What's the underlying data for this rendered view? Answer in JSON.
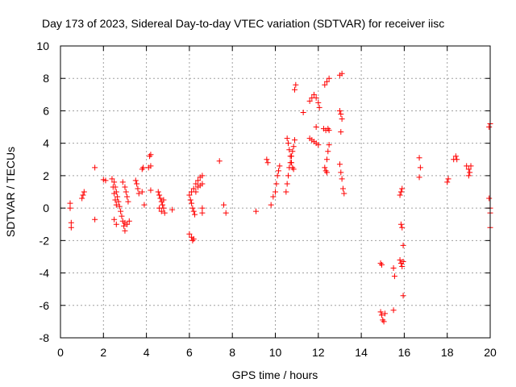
{
  "chart_data": {
    "type": "scatter",
    "title": "Day 173 of 2023, Sidereal Day-to-day VTEC variation (SDTVAR) for receiver iisc",
    "xlabel": "GPS time / hours",
    "ylabel": "SDTVAR / TECUs",
    "xlim": [
      0,
      20
    ],
    "ylim": [
      -8,
      10
    ],
    "xticks": [
      "0",
      "2",
      "4",
      "6",
      "8",
      "10",
      "12",
      "14",
      "16",
      "18",
      "20"
    ],
    "yticks": [
      "-8",
      "-6",
      "-4",
      "-2",
      "0",
      "2",
      "4",
      "6",
      "8",
      "10"
    ],
    "grid": true,
    "marker": "+",
    "series": [
      {
        "name": "SDTVAR",
        "color": "#ff0000",
        "points": [
          [
            0.45,
            0.3
          ],
          [
            0.45,
            0.0
          ],
          [
            0.5,
            -0.9
          ],
          [
            0.5,
            -1.2
          ],
          [
            1.0,
            0.6
          ],
          [
            1.05,
            0.8
          ],
          [
            1.1,
            1.0
          ],
          [
            1.6,
            2.5
          ],
          [
            1.6,
            -0.7
          ],
          [
            2.0,
            1.75
          ],
          [
            2.1,
            1.7
          ],
          [
            2.4,
            1.8
          ],
          [
            2.5,
            1.6
          ],
          [
            2.55,
            1.3
          ],
          [
            2.6,
            1.0
          ],
          [
            2.65,
            0.7
          ],
          [
            2.7,
            0.4
          ],
          [
            2.75,
            0.1
          ],
          [
            2.8,
            -0.2
          ],
          [
            2.85,
            -0.5
          ],
          [
            2.9,
            -0.8
          ],
          [
            2.95,
            -1.1
          ],
          [
            3.0,
            -1.4
          ],
          [
            2.45,
            1.3
          ],
          [
            2.5,
            0.9
          ],
          [
            2.55,
            0.5
          ],
          [
            2.6,
            0.2
          ],
          [
            2.5,
            -0.7
          ],
          [
            2.6,
            -1.0
          ],
          [
            2.9,
            1.6
          ],
          [
            3.0,
            1.3
          ],
          [
            3.05,
            1.0
          ],
          [
            3.1,
            0.7
          ],
          [
            3.15,
            0.4
          ],
          [
            3.0,
            -0.9
          ],
          [
            3.1,
            -1.0
          ],
          [
            3.2,
            -0.8
          ],
          [
            3.5,
            1.7
          ],
          [
            3.55,
            1.5
          ],
          [
            3.6,
            1.2
          ],
          [
            3.65,
            0.9
          ],
          [
            3.8,
            2.4
          ],
          [
            3.85,
            2.5
          ],
          [
            3.8,
            1.0
          ],
          [
            3.9,
            0.2
          ],
          [
            4.1,
            2.5
          ],
          [
            4.2,
            2.6
          ],
          [
            4.15,
            3.2
          ],
          [
            4.2,
            3.3
          ],
          [
            4.2,
            1.1
          ],
          [
            4.55,
            1.0
          ],
          [
            4.6,
            0.8
          ],
          [
            4.65,
            0.6
          ],
          [
            4.7,
            0.4
          ],
          [
            4.75,
            0.2
          ],
          [
            4.8,
            0.0
          ],
          [
            4.85,
            -0.3
          ],
          [
            4.6,
            0.0
          ],
          [
            4.7,
            -0.2
          ],
          [
            4.8,
            0.5
          ],
          [
            5.2,
            -0.1
          ],
          [
            6.0,
            0.8
          ],
          [
            6.05,
            0.5
          ],
          [
            6.1,
            0.3
          ],
          [
            6.15,
            0.0
          ],
          [
            6.2,
            -0.2
          ],
          [
            6.25,
            -0.4
          ],
          [
            6.0,
            -1.6
          ],
          [
            6.1,
            -1.8
          ],
          [
            6.15,
            -2.0
          ],
          [
            6.2,
            -1.9
          ],
          [
            6.1,
            1.0
          ],
          [
            6.2,
            1.2
          ],
          [
            6.3,
            1.5
          ],
          [
            6.4,
            1.7
          ],
          [
            6.5,
            1.9
          ],
          [
            6.6,
            2.0
          ],
          [
            6.3,
            1.0
          ],
          [
            6.4,
            1.3
          ],
          [
            6.5,
            1.4
          ],
          [
            6.6,
            1.5
          ],
          [
            6.6,
            0.0
          ],
          [
            6.6,
            -0.3
          ],
          [
            7.4,
            2.9
          ],
          [
            7.6,
            0.2
          ],
          [
            7.7,
            -0.3
          ],
          [
            9.1,
            -0.2
          ],
          [
            9.6,
            3.0
          ],
          [
            9.65,
            2.8
          ],
          [
            9.8,
            0.2
          ],
          [
            9.9,
            0.7
          ],
          [
            10.0,
            1.0
          ],
          [
            10.05,
            1.5
          ],
          [
            10.1,
            2.0
          ],
          [
            10.15,
            2.3
          ],
          [
            10.2,
            2.6
          ],
          [
            10.5,
            1.0
          ],
          [
            10.55,
            1.5
          ],
          [
            10.6,
            2.0
          ],
          [
            10.65,
            2.5
          ],
          [
            10.7,
            2.8
          ],
          [
            10.75,
            3.2
          ],
          [
            10.8,
            3.5
          ],
          [
            10.85,
            3.8
          ],
          [
            10.9,
            4.2
          ],
          [
            10.55,
            4.3
          ],
          [
            10.6,
            4.0
          ],
          [
            10.65,
            3.6
          ],
          [
            10.7,
            3.2
          ],
          [
            10.75,
            2.8
          ],
          [
            10.8,
            2.5
          ],
          [
            10.85,
            2.4
          ],
          [
            10.9,
            7.3
          ],
          [
            10.95,
            7.6
          ],
          [
            11.3,
            5.9
          ],
          [
            11.6,
            6.6
          ],
          [
            11.7,
            6.8
          ],
          [
            11.8,
            7.0
          ],
          [
            11.9,
            6.8
          ],
          [
            12.0,
            6.5
          ],
          [
            12.05,
            6.2
          ],
          [
            11.6,
            4.3
          ],
          [
            11.7,
            4.2
          ],
          [
            11.8,
            4.1
          ],
          [
            11.9,
            4.0
          ],
          [
            12.0,
            3.9
          ],
          [
            11.9,
            5.0
          ],
          [
            12.3,
            7.6
          ],
          [
            12.4,
            7.8
          ],
          [
            12.5,
            8.0
          ],
          [
            12.25,
            4.9
          ],
          [
            12.35,
            4.8
          ],
          [
            12.45,
            4.9
          ],
          [
            12.5,
            4.8
          ],
          [
            12.3,
            2.5
          ],
          [
            12.35,
            2.3
          ],
          [
            12.4,
            2.2
          ],
          [
            12.4,
            3.0
          ],
          [
            12.45,
            3.5
          ],
          [
            12.5,
            3.9
          ],
          [
            13.0,
            8.2
          ],
          [
            13.1,
            8.3
          ],
          [
            13.0,
            6.0
          ],
          [
            13.05,
            5.8
          ],
          [
            13.1,
            5.5
          ],
          [
            13.05,
            4.7
          ],
          [
            13.0,
            2.7
          ],
          [
            13.05,
            2.2
          ],
          [
            13.1,
            1.8
          ],
          [
            13.15,
            1.2
          ],
          [
            13.2,
            0.9
          ],
          [
            14.9,
            -3.4
          ],
          [
            14.95,
            -3.5
          ],
          [
            14.9,
            -6.4
          ],
          [
            14.95,
            -6.6
          ],
          [
            15.0,
            -6.9
          ],
          [
            15.05,
            -7.0
          ],
          [
            15.1,
            -6.5
          ],
          [
            15.5,
            -3.7
          ],
          [
            15.55,
            -4.2
          ],
          [
            15.5,
            -6.3
          ],
          [
            15.8,
            0.8
          ],
          [
            15.85,
            1.0
          ],
          [
            15.9,
            1.2
          ],
          [
            15.85,
            -1.0
          ],
          [
            15.9,
            -1.2
          ],
          [
            15.95,
            -2.3
          ],
          [
            15.8,
            -3.2
          ],
          [
            15.85,
            -3.4
          ],
          [
            15.9,
            -3.6
          ],
          [
            15.95,
            -3.3
          ],
          [
            15.95,
            -5.4
          ],
          [
            16.7,
            3.1
          ],
          [
            16.75,
            2.5
          ],
          [
            16.7,
            1.9
          ],
          [
            18.0,
            1.6
          ],
          [
            18.05,
            1.8
          ],
          [
            18.3,
            3.0
          ],
          [
            18.4,
            3.2
          ],
          [
            18.45,
            3.0
          ],
          [
            18.9,
            2.6
          ],
          [
            19.0,
            2.4
          ],
          [
            19.05,
            2.2
          ],
          [
            19.1,
            2.6
          ],
          [
            19.0,
            2.0
          ],
          [
            19.95,
            5.0
          ],
          [
            20.0,
            5.2
          ],
          [
            19.95,
            0.6
          ],
          [
            20.0,
            0.0
          ],
          [
            20.0,
            -0.3
          ],
          [
            20.0,
            -1.2
          ]
        ]
      }
    ]
  }
}
